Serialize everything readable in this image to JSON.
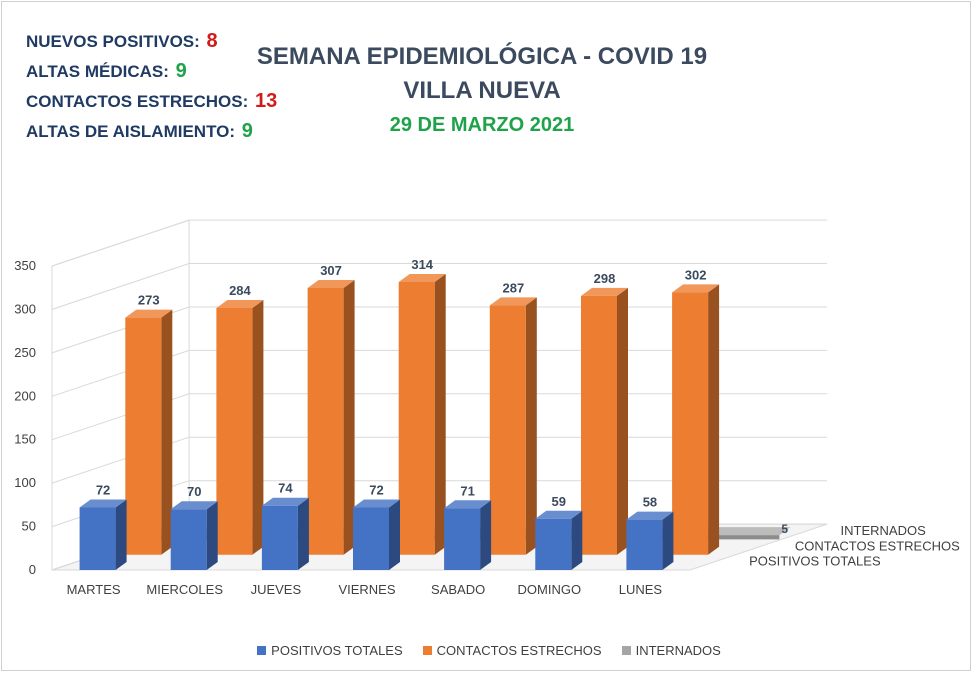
{
  "summary": [
    {
      "label": "NUEVOS POSITIVOS:",
      "value": "8",
      "tone": "red"
    },
    {
      "label": "ALTAS MÉDICAS:",
      "value": "9",
      "tone": "green"
    },
    {
      "label": "CONTACTOS ESTRECHOS:",
      "value": "13",
      "tone": "red"
    },
    {
      "label": "ALTAS DE AISLAMIENTO:",
      "value": "9",
      "tone": "green"
    }
  ],
  "colors": {
    "positivos": "#4472c4",
    "contactos": "#ed7d31",
    "internados": "#a5a5a5",
    "red": "#d21a1a",
    "green": "#1ea24a",
    "navy": "#1f3a63"
  },
  "chart_data": {
    "type": "bar",
    "variant": "3d-column-depth",
    "title": "SEMANA EPIDEMIOLÓGICA - COVID 19",
    "subtitle": "VILLA NUEVA",
    "date": "29 DE MARZO 2021",
    "categories": [
      "MARTES",
      "MIERCOLES",
      "JUEVES",
      "VIERNES",
      "SABADO",
      "DOMINGO",
      "LUNES"
    ],
    "series": [
      {
        "name": "POSITIVOS TOTALES",
        "values": [
          72,
          70,
          74,
          72,
          71,
          59,
          58
        ]
      },
      {
        "name": "CONTACTOS ESTRECHOS",
        "values": [
          273,
          284,
          307,
          314,
          287,
          298,
          302
        ]
      },
      {
        "name": "INTERNADOS",
        "values": [
          5,
          5,
          5,
          5,
          5,
          5,
          5
        ]
      }
    ],
    "ylim": [
      0,
      350
    ],
    "yticks": [
      "0",
      "50",
      "100",
      "150",
      "200",
      "250",
      "300",
      "350"
    ],
    "grid": true,
    "legend_position": "bottom"
  }
}
